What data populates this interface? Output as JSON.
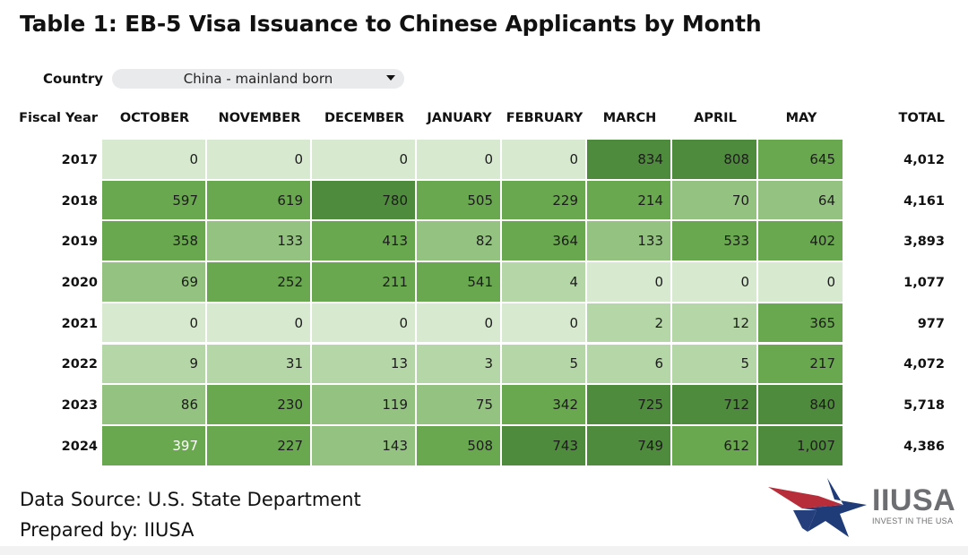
{
  "title": "Table 1: EB-5 Visa Issuance to Chinese Applicants by Month",
  "filter": {
    "label": "Country",
    "selected": "China - mainland born"
  },
  "chart_data": {
    "type": "heatmap",
    "row_header": "Fiscal Year",
    "columns": [
      "OCTOBER",
      "NOVEMBER",
      "DECEMBER",
      "JANUARY",
      "FEBRUARY",
      "MARCH",
      "APRIL",
      "MAY"
    ],
    "total_header": "TOTAL",
    "rows": [
      {
        "year": "2017",
        "values": [
          "0",
          "0",
          "0",
          "0",
          "0",
          "834",
          "808",
          "645"
        ],
        "total": "4,012"
      },
      {
        "year": "2018",
        "values": [
          "597",
          "619",
          "780",
          "505",
          "229",
          "214",
          "70",
          "64"
        ],
        "total": "4,161"
      },
      {
        "year": "2019",
        "values": [
          "358",
          "133",
          "413",
          "82",
          "364",
          "133",
          "533",
          "402"
        ],
        "total": "3,893"
      },
      {
        "year": "2020",
        "values": [
          "69",
          "252",
          "211",
          "541",
          "4",
          "0",
          "0",
          "0"
        ],
        "total": "1,077"
      },
      {
        "year": "2021",
        "values": [
          "0",
          "0",
          "0",
          "0",
          "0",
          "2",
          "12",
          "365"
        ],
        "total": "977"
      },
      {
        "year": "2022",
        "values": [
          "9",
          "31",
          "13",
          "3",
          "5",
          "6",
          "5",
          "217"
        ],
        "total": "4,072"
      },
      {
        "year": "2023",
        "values": [
          "86",
          "230",
          "119",
          "75",
          "342",
          "725",
          "712",
          "840"
        ],
        "total": "5,718"
      },
      {
        "year": "2024",
        "values": [
          "397",
          "227",
          "143",
          "508",
          "743",
          "749",
          "612",
          "1,007"
        ],
        "total": "4,386"
      }
    ],
    "colors": {
      "lightest": "#d7eacf",
      "light": "#b5d6a6",
      "mid_light": "#94c381",
      "mid": "#69a84f",
      "dark": "#4f8b3c"
    }
  },
  "footer": {
    "source": "Data Source: U.S. State Department",
    "prepared": "Prepared by: IIUSA"
  },
  "logo": {
    "name": "IIUSA",
    "tagline": "INVEST IN THE USA"
  }
}
